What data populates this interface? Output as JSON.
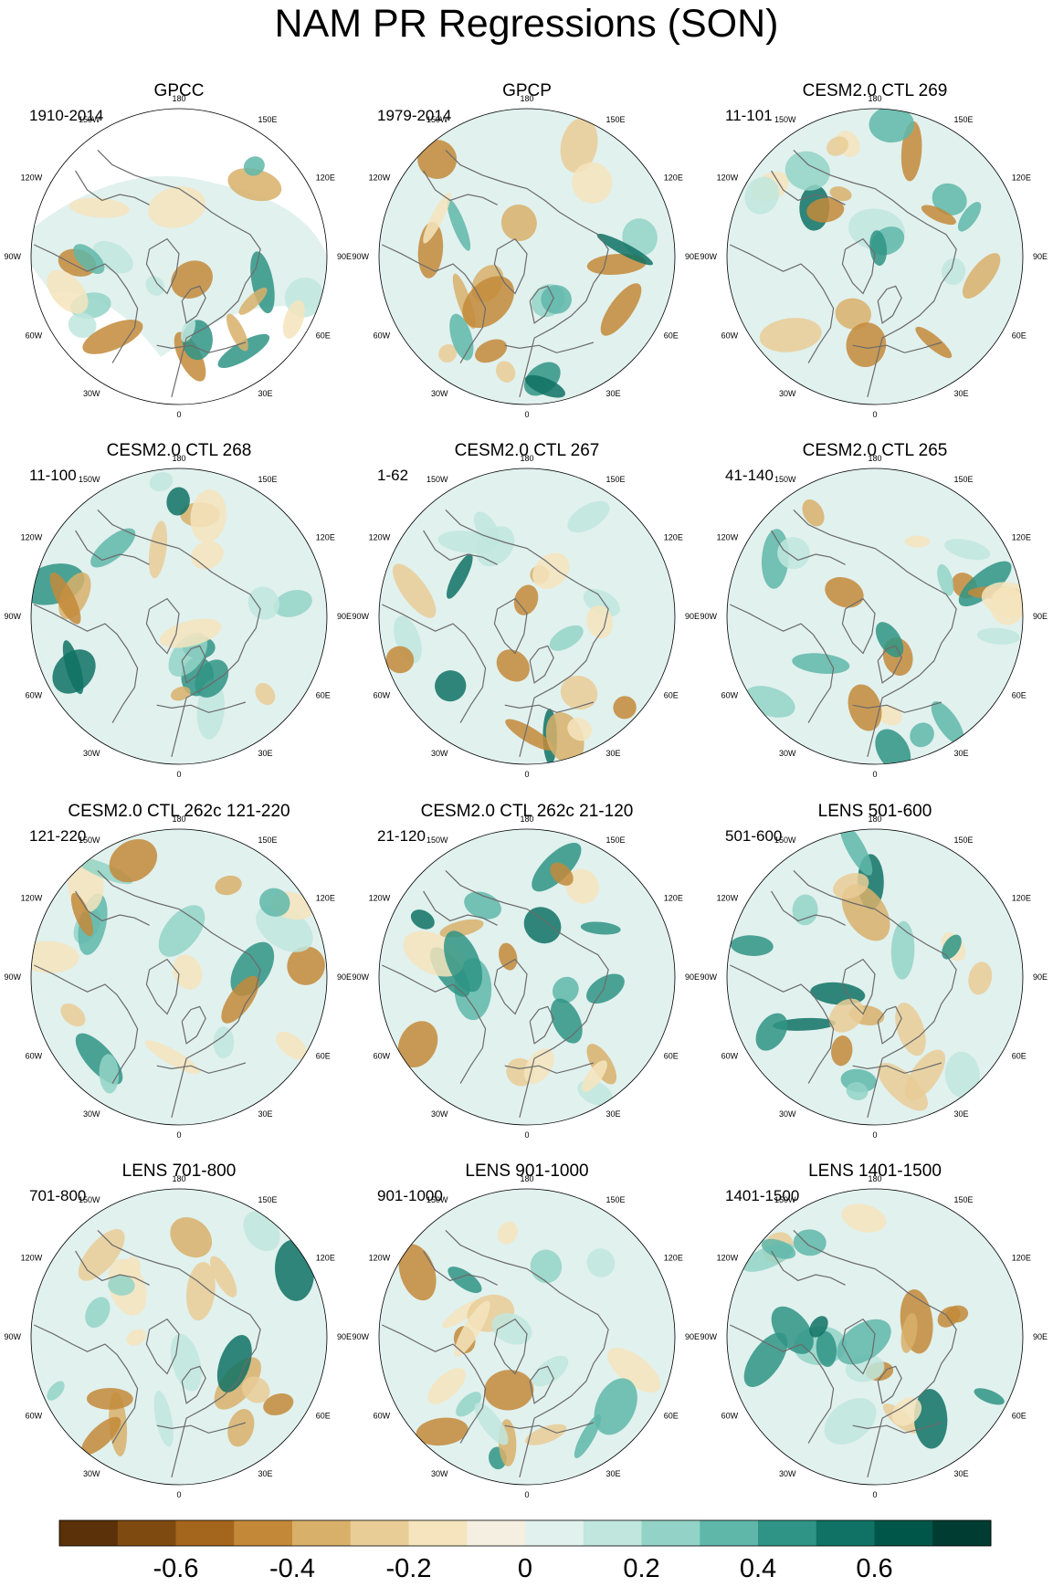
{
  "title": "NAM PR Regressions (SON)",
  "longitude_ticks": [
    "180",
    "150E",
    "120E",
    "90E",
    "60E",
    "30E",
    "0",
    "30W",
    "60W",
    "90W",
    "120W",
    "150W"
  ],
  "chart_data": {
    "type": "heatmap",
    "projection": "north polar stereographic",
    "panels": [
      {
        "title": "GPCC",
        "period": "1910-2014"
      },
      {
        "title": "GPCP",
        "period": "1979-2014"
      },
      {
        "title": "CESM2.0 CTL 269",
        "period": "11-101"
      },
      {
        "title": "CESM2.0 CTL 268",
        "period": "11-100"
      },
      {
        "title": "CESM2.0 CTL 267",
        "period": "1-62"
      },
      {
        "title": "CESM2.0 CTL 265",
        "period": "41-140"
      },
      {
        "title": "CESM2.0 CTL 262c 121-220",
        "period": "121-220"
      },
      {
        "title": "CESM2.0 CTL 262c 21-120",
        "period": "21-120"
      },
      {
        "title": "LENS 501-600",
        "period": "501-600"
      },
      {
        "title": "LENS 701-800",
        "period": "701-800"
      },
      {
        "title": "LENS 901-1000",
        "period": "901-1000"
      },
      {
        "title": "LENS 1401-1500",
        "period": "1401-1500"
      }
    ],
    "colorbar": {
      "min": -0.8,
      "max": 0.8,
      "step": 0.1,
      "tick_labels": [
        "-0.6",
        "-0.4",
        "-0.2",
        "0",
        "0.2",
        "0.4",
        "0.6"
      ],
      "tick_values": [
        -0.6,
        -0.4,
        -0.2,
        0,
        0.2,
        0.4,
        0.6
      ],
      "colors": [
        "#5a3108",
        "#7f4a10",
        "#a4651d",
        "#c38939",
        "#d8b06a",
        "#e9cd97",
        "#f5e4bd",
        "#f5efe1",
        "#e1f1ee",
        "#c0e6de",
        "#93d3c7",
        "#5fb7a9",
        "#2f9485",
        "#0f7264",
        "#005648",
        "#003c31"
      ]
    }
  }
}
